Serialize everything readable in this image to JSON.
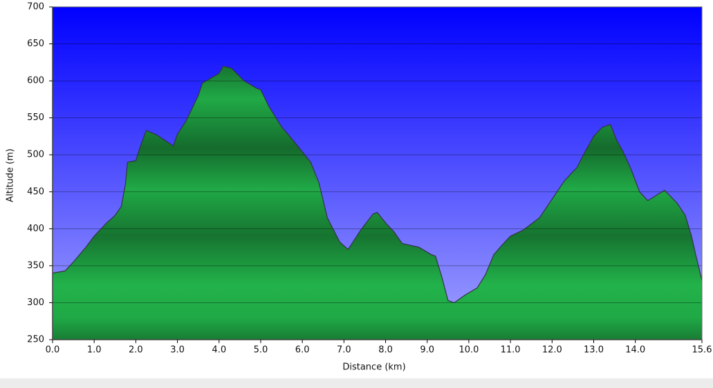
{
  "chart_data": {
    "type": "area",
    "x_label": "Distance   (km)",
    "y_label": "Altitude (m)",
    "x": [
      0.0,
      0.3,
      0.5,
      0.8,
      1.0,
      1.3,
      1.5,
      1.65,
      1.75,
      1.8,
      2.0,
      2.1,
      2.25,
      2.5,
      2.9,
      3.0,
      3.2,
      3.5,
      3.6,
      4.0,
      4.1,
      4.3,
      4.6,
      4.9,
      5.0,
      5.2,
      5.5,
      5.8,
      6.1,
      6.2,
      6.4,
      6.6,
      6.9,
      7.1,
      7.4,
      7.7,
      7.8,
      8.0,
      8.2,
      8.4,
      8.8,
      9.1,
      9.2,
      9.35,
      9.5,
      9.65,
      9.9,
      10.2,
      10.4,
      10.6,
      10.8,
      11.0,
      11.3,
      11.7,
      12.0,
      12.3,
      12.6,
      12.8,
      13.0,
      13.2,
      13.4,
      13.55,
      13.7,
      13.9,
      14.1,
      14.3,
      14.5,
      14.7,
      15.0,
      15.2,
      15.35,
      15.45,
      15.6
    ],
    "values": [
      340,
      343,
      355,
      375,
      390,
      408,
      418,
      430,
      460,
      490,
      492,
      510,
      533,
      527,
      512,
      528,
      545,
      580,
      597,
      610,
      620,
      617,
      600,
      590,
      588,
      565,
      538,
      518,
      497,
      490,
      462,
      415,
      382,
      372,
      398,
      420,
      422,
      408,
      396,
      380,
      375,
      365,
      363,
      335,
      303,
      300,
      310,
      320,
      338,
      365,
      378,
      390,
      398,
      415,
      440,
      465,
      483,
      505,
      525,
      537,
      541,
      520,
      505,
      480,
      450,
      438,
      445,
      452,
      435,
      418,
      390,
      365,
      330
    ],
    "color": "#22b24a",
    "line_color": "#333344",
    "background": [
      "#0000ff",
      "#a4a4ff"
    ],
    "grid": true,
    "xlim": [
      0,
      15.6
    ],
    "ylim": [
      250,
      700
    ],
    "xticks": [
      {
        "value": 0,
        "label": "0.0"
      },
      {
        "value": 1,
        "label": "1.0"
      },
      {
        "value": 2,
        "label": "2.0"
      },
      {
        "value": 3,
        "label": "3.0"
      },
      {
        "value": 4,
        "label": "4.0"
      },
      {
        "value": 5,
        "label": "5.0"
      },
      {
        "value": 6,
        "label": "6.0"
      },
      {
        "value": 7,
        "label": "7.0"
      },
      {
        "value": 8,
        "label": "8.0"
      },
      {
        "value": 9,
        "label": "9.0"
      },
      {
        "value": 10,
        "label": "10.0"
      },
      {
        "value": 11,
        "label": "11.0"
      },
      {
        "value": 12,
        "label": "12.0"
      },
      {
        "value": 13,
        "label": "13.0"
      },
      {
        "value": 14,
        "label": "14.0"
      },
      15.6
    ],
    "yticks": [
      250,
      300,
      350,
      400,
      450,
      500,
      550,
      600,
      650,
      700
    ]
  }
}
